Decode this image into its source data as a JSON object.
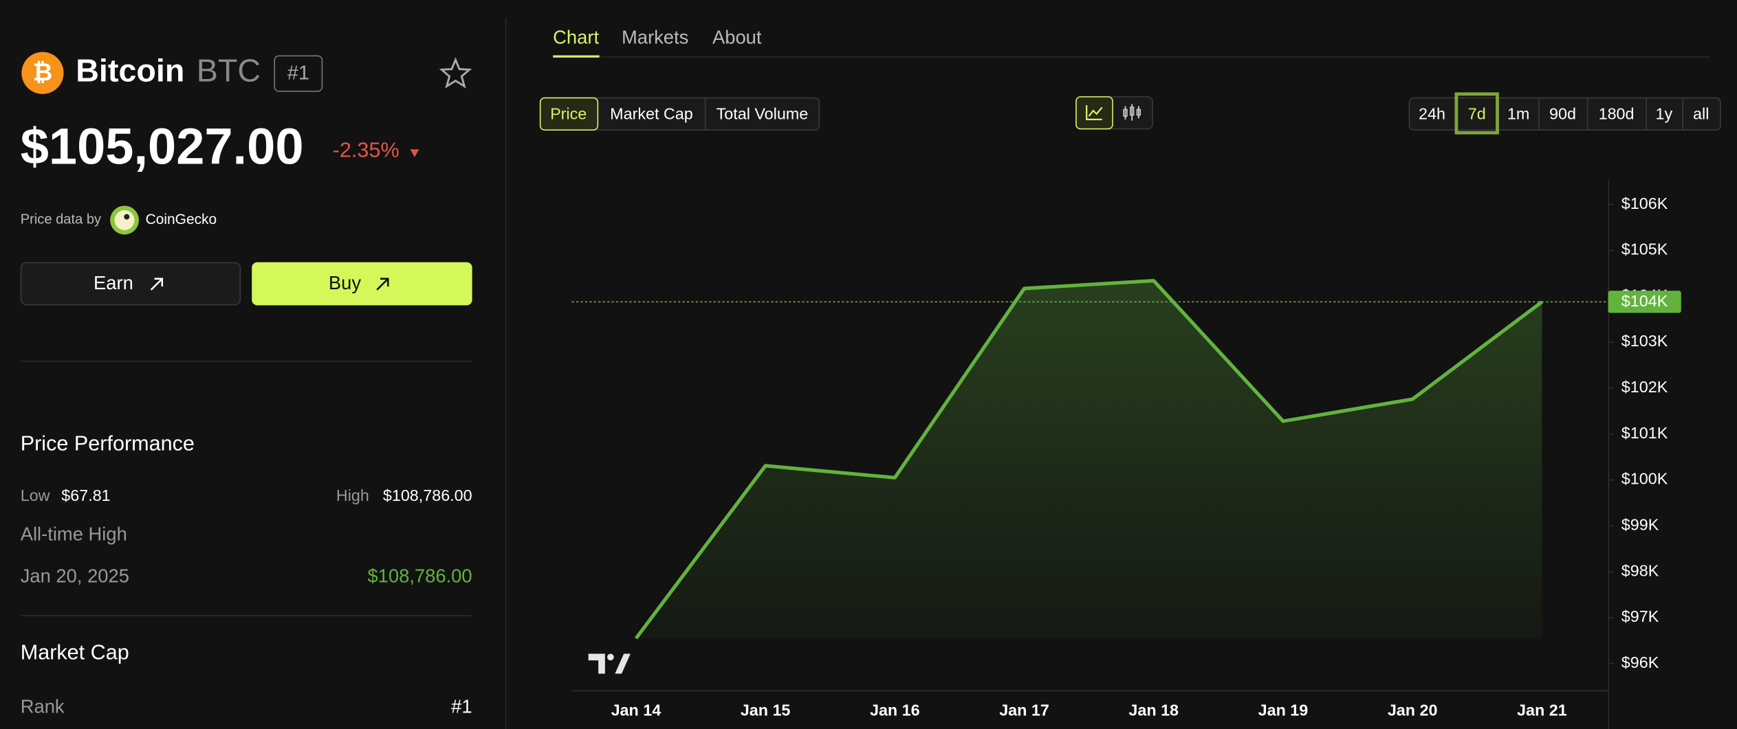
{
  "header": {
    "name": "Bitcoin",
    "symbol": "BTC",
    "rank": "#1",
    "price": "$105,027.00",
    "change": "-2.35%",
    "source_label": "Price data by",
    "source": "CoinGecko"
  },
  "buttons": {
    "earn": "Earn",
    "buy": "Buy"
  },
  "price_performance": {
    "title": "Price Performance",
    "low_label": "Low",
    "low": "$67.81",
    "high_label": "High",
    "high": "$108,786.00",
    "ath_label": "All-time High",
    "ath_date": "Jan 20, 2025",
    "ath_value": "$108,786.00"
  },
  "market_cap": {
    "title": "Market Cap",
    "rank_label": "Rank",
    "rank": "#1"
  },
  "tabs": [
    "Chart",
    "Markets",
    "About"
  ],
  "metric_tabs": [
    "Price",
    "Market Cap",
    "Total Volume"
  ],
  "ranges": [
    "24h",
    "7d",
    "1m",
    "90d",
    "180d",
    "1y",
    "all"
  ],
  "chart_data": {
    "type": "area",
    "categories": [
      "Jan 14",
      "Jan 15",
      "Jan 16",
      "Jan 17",
      "Jan 18",
      "Jan 19",
      "Jan 20",
      "Jan 21"
    ],
    "values": [
      96550,
      100310,
      100050,
      104170,
      104340,
      101280,
      101760,
      103880
    ],
    "color": "#62b33e",
    "last_value_label": "$104K",
    "ylim": [
      95420,
      106550
    ],
    "yticks": [
      {
        "value": 96000,
        "label": "$96K"
      },
      {
        "value": 97000,
        "label": "$97K"
      },
      {
        "value": 98000,
        "label": "$98K"
      },
      {
        "value": 99000,
        "label": "$99K"
      },
      {
        "value": 100000,
        "label": "$100K"
      },
      {
        "value": 101000,
        "label": "$101K"
      },
      {
        "value": 102000,
        "label": "$102K"
      },
      {
        "value": 103000,
        "label": "$103K"
      },
      {
        "value": 104000,
        "label": "$104K"
      },
      {
        "value": 105000,
        "label": "$105K"
      },
      {
        "value": 106000,
        "label": "$106K"
      }
    ]
  }
}
